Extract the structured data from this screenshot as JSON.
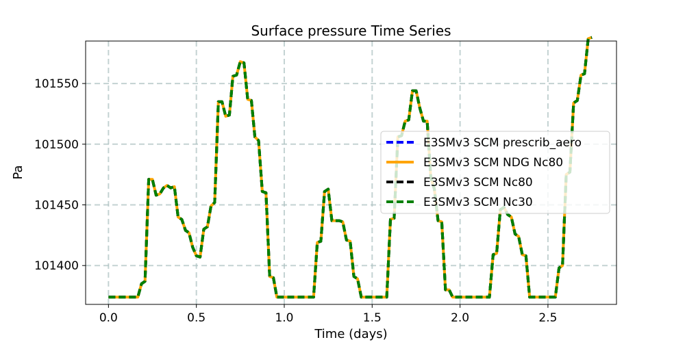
{
  "chart_data": {
    "type": "line",
    "title": "Surface pressure Time Series",
    "xlabel": "Time (days)",
    "ylabel": "Pa",
    "xlim": [
      -0.13,
      2.89
    ],
    "ylim": [
      101368,
      101585
    ],
    "grid": true,
    "legend_position": "center-right",
    "x_ticks": [
      0.0,
      0.5,
      1.0,
      1.5,
      2.0,
      2.5
    ],
    "x_tick_labels": [
      "0.0",
      "0.5",
      "1.0",
      "1.5",
      "2.0",
      "2.5"
    ],
    "y_ticks": [
      101400,
      101450,
      101500,
      101550
    ],
    "y_tick_labels": [
      "101400",
      "101450",
      "101500",
      "101550"
    ],
    "x": [
      0.0,
      0.042,
      0.083,
      0.125,
      0.167,
      0.188,
      0.208,
      0.229,
      0.25,
      0.271,
      0.292,
      0.313,
      0.333,
      0.354,
      0.375,
      0.396,
      0.417,
      0.438,
      0.458,
      0.479,
      0.5,
      0.521,
      0.542,
      0.563,
      0.583,
      0.604,
      0.625,
      0.646,
      0.667,
      0.688,
      0.708,
      0.729,
      0.75,
      0.771,
      0.792,
      0.813,
      0.833,
      0.854,
      0.875,
      0.896,
      0.917,
      0.938,
      0.958,
      0.979,
      1.0,
      1.042,
      1.083,
      1.125,
      1.167,
      1.188,
      1.208,
      1.229,
      1.25,
      1.271,
      1.292,
      1.313,
      1.333,
      1.354,
      1.375,
      1.396,
      1.417,
      1.438,
      1.458,
      1.479,
      1.5,
      1.542,
      1.583,
      1.604,
      1.625,
      1.646,
      1.667,
      1.688,
      1.708,
      1.729,
      1.75,
      1.771,
      1.792,
      1.813,
      1.833,
      1.854,
      1.875,
      1.896,
      1.917,
      1.938,
      1.958,
      1.979,
      2.0,
      2.042,
      2.083,
      2.125,
      2.167,
      2.188,
      2.208,
      2.229,
      2.25,
      2.271,
      2.292,
      2.313,
      2.333,
      2.354,
      2.375,
      2.396,
      2.417,
      2.438,
      2.458,
      2.479,
      2.5,
      2.542,
      2.563,
      2.583,
      2.604,
      2.625,
      2.646,
      2.667,
      2.688,
      2.708,
      2.729,
      2.75
    ],
    "series": [
      {
        "name": "E3SMv3 SCM prescrib_aero",
        "color": "#0000ff",
        "style": "dashed",
        "width": 4,
        "values": [
          101374,
          101374,
          101374,
          101374,
          101374,
          101385,
          101387,
          101471,
          101471,
          101458,
          101459,
          101464,
          101466,
          101464,
          101465,
          101440,
          101438,
          101429,
          101427,
          101415,
          101408,
          101407,
          101430,
          101432,
          101449,
          101452,
          101535,
          101535,
          101523,
          101524,
          101556,
          101557,
          101568,
          101567,
          101537,
          101536,
          101506,
          101503,
          101461,
          101460,
          101391,
          101390,
          101374,
          101374,
          101374,
          101374,
          101374,
          101374,
          101374,
          101419,
          101420,
          101461,
          101463,
          101437,
          101437,
          101437,
          101436,
          101421,
          101420,
          101391,
          101389,
          101374,
          101374,
          101374,
          101374,
          101374,
          101374,
          101438,
          101439,
          101506,
          101507,
          101519,
          101520,
          101544,
          101544,
          101530,
          101519,
          101519,
          101473,
          101463,
          101437,
          101436,
          101380,
          101380,
          101374,
          101374,
          101374,
          101374,
          101374,
          101374,
          101374,
          101409,
          101410,
          101446,
          101448,
          101442,
          101440,
          101426,
          101424,
          101409,
          101408,
          101374,
          101374,
          101374,
          101374,
          101374,
          101374,
          101374,
          101398,
          101400,
          101475,
          101477,
          101534,
          101536,
          101557,
          101558,
          101587,
          101588
        ]
      },
      {
        "name": "E3SMv3 SCM NDG Nc80",
        "color": "#ffa500",
        "style": "solid",
        "width": 4,
        "values": [
          101374,
          101374,
          101374,
          101374,
          101374,
          101385,
          101387,
          101471,
          101471,
          101458,
          101459,
          101464,
          101466,
          101464,
          101465,
          101440,
          101438,
          101429,
          101427,
          101415,
          101408,
          101407,
          101430,
          101432,
          101449,
          101452,
          101535,
          101535,
          101523,
          101524,
          101556,
          101557,
          101568,
          101567,
          101537,
          101536,
          101506,
          101503,
          101461,
          101460,
          101391,
          101390,
          101374,
          101374,
          101374,
          101374,
          101374,
          101374,
          101374,
          101419,
          101420,
          101461,
          101463,
          101437,
          101437,
          101437,
          101436,
          101421,
          101420,
          101391,
          101389,
          101374,
          101374,
          101374,
          101374,
          101374,
          101374,
          101438,
          101439,
          101506,
          101507,
          101519,
          101520,
          101544,
          101544,
          101530,
          101519,
          101519,
          101473,
          101463,
          101437,
          101436,
          101380,
          101380,
          101374,
          101374,
          101374,
          101374,
          101374,
          101374,
          101374,
          101409,
          101410,
          101446,
          101448,
          101442,
          101440,
          101426,
          101424,
          101409,
          101408,
          101374,
          101374,
          101374,
          101374,
          101374,
          101374,
          101374,
          101398,
          101400,
          101475,
          101477,
          101534,
          101536,
          101557,
          101558,
          101587,
          101588
        ]
      },
      {
        "name": "E3SMv3 SCM Nc80",
        "color": "#000000",
        "style": "dashed",
        "width": 4,
        "values": [
          101374,
          101374,
          101374,
          101374,
          101374,
          101385,
          101387,
          101471,
          101471,
          101458,
          101459,
          101464,
          101466,
          101464,
          101465,
          101440,
          101438,
          101429,
          101427,
          101415,
          101408,
          101407,
          101430,
          101432,
          101449,
          101452,
          101535,
          101535,
          101523,
          101524,
          101556,
          101557,
          101568,
          101567,
          101537,
          101536,
          101506,
          101503,
          101461,
          101460,
          101391,
          101390,
          101374,
          101374,
          101374,
          101374,
          101374,
          101374,
          101374,
          101419,
          101420,
          101461,
          101463,
          101437,
          101437,
          101437,
          101436,
          101421,
          101420,
          101391,
          101389,
          101374,
          101374,
          101374,
          101374,
          101374,
          101374,
          101438,
          101439,
          101506,
          101507,
          101519,
          101520,
          101544,
          101544,
          101530,
          101519,
          101519,
          101473,
          101463,
          101437,
          101436,
          101380,
          101380,
          101374,
          101374,
          101374,
          101374,
          101374,
          101374,
          101374,
          101409,
          101410,
          101446,
          101448,
          101442,
          101440,
          101426,
          101424,
          101409,
          101408,
          101374,
          101374,
          101374,
          101374,
          101374,
          101374,
          101374,
          101398,
          101400,
          101475,
          101477,
          101534,
          101536,
          101557,
          101558,
          101587,
          101588
        ]
      },
      {
        "name": "E3SMv3 SCM Nc30",
        "color": "#008000",
        "style": "dashed",
        "width": 4,
        "values": [
          101374,
          101374,
          101374,
          101374,
          101374,
          101385,
          101387,
          101471,
          101471,
          101458,
          101459,
          101464,
          101466,
          101464,
          101465,
          101440,
          101438,
          101429,
          101427,
          101415,
          101408,
          101407,
          101430,
          101432,
          101449,
          101452,
          101535,
          101535,
          101523,
          101524,
          101556,
          101557,
          101568,
          101567,
          101537,
          101536,
          101506,
          101503,
          101461,
          101460,
          101391,
          101390,
          101374,
          101374,
          101374,
          101374,
          101374,
          101374,
          101374,
          101419,
          101420,
          101461,
          101463,
          101437,
          101437,
          101437,
          101436,
          101421,
          101420,
          101391,
          101389,
          101374,
          101374,
          101374,
          101374,
          101374,
          101374,
          101438,
          101439,
          101506,
          101507,
          101519,
          101520,
          101544,
          101544,
          101530,
          101519,
          101519,
          101473,
          101463,
          101437,
          101436,
          101380,
          101380,
          101374,
          101374,
          101374,
          101374,
          101374,
          101374,
          101374,
          101409,
          101410,
          101446,
          101448,
          101442,
          101440,
          101426,
          101424,
          101409,
          101408,
          101374,
          101374,
          101374,
          101374,
          101374,
          101374,
          101374,
          101398,
          101400,
          101475,
          101477,
          101534,
          101536,
          101557,
          101558,
          101587,
          101588
        ]
      }
    ]
  }
}
